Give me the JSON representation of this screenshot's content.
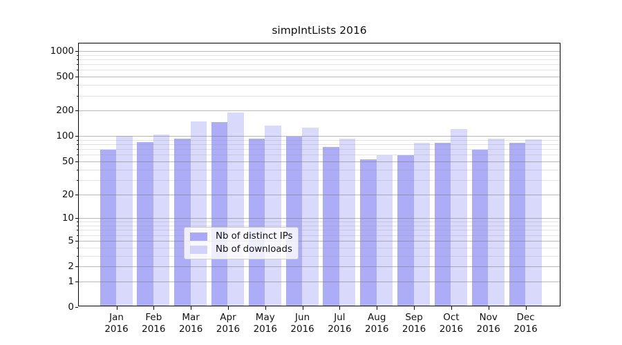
{
  "chart_data": {
    "type": "bar",
    "title": "simpIntLists 2016",
    "categories": [
      "Jan",
      "Feb",
      "Mar",
      "Apr",
      "May",
      "Jun",
      "Jul",
      "Aug",
      "Sep",
      "Oct",
      "Nov",
      "Dec"
    ],
    "year": "2016",
    "series": [
      {
        "name": "Nb of distinct IPs",
        "values": [
          66,
          81,
          90,
          140,
          89,
          94,
          71,
          51,
          57,
          80,
          66,
          80
        ]
      },
      {
        "name": "Nb of downloads",
        "values": [
          97,
          101,
          143,
          183,
          127,
          120,
          90,
          57,
          80,
          117,
          90,
          88
        ]
      }
    ],
    "yscale": "log1p",
    "yticks": [
      0,
      1,
      2,
      5,
      10,
      20,
      50,
      100,
      200,
      500,
      1000
    ],
    "ylim": [
      0,
      1200
    ],
    "grid": "on",
    "legend_position": "lower center",
    "colors": {
      "distinct_ips": "rgba(95,95,240,0.52)",
      "downloads": "rgba(95,95,240,0.24)",
      "grid_major": "rgba(115,115,115,0.50)",
      "grid_minor": "rgba(150,150,150,0.28)"
    }
  }
}
